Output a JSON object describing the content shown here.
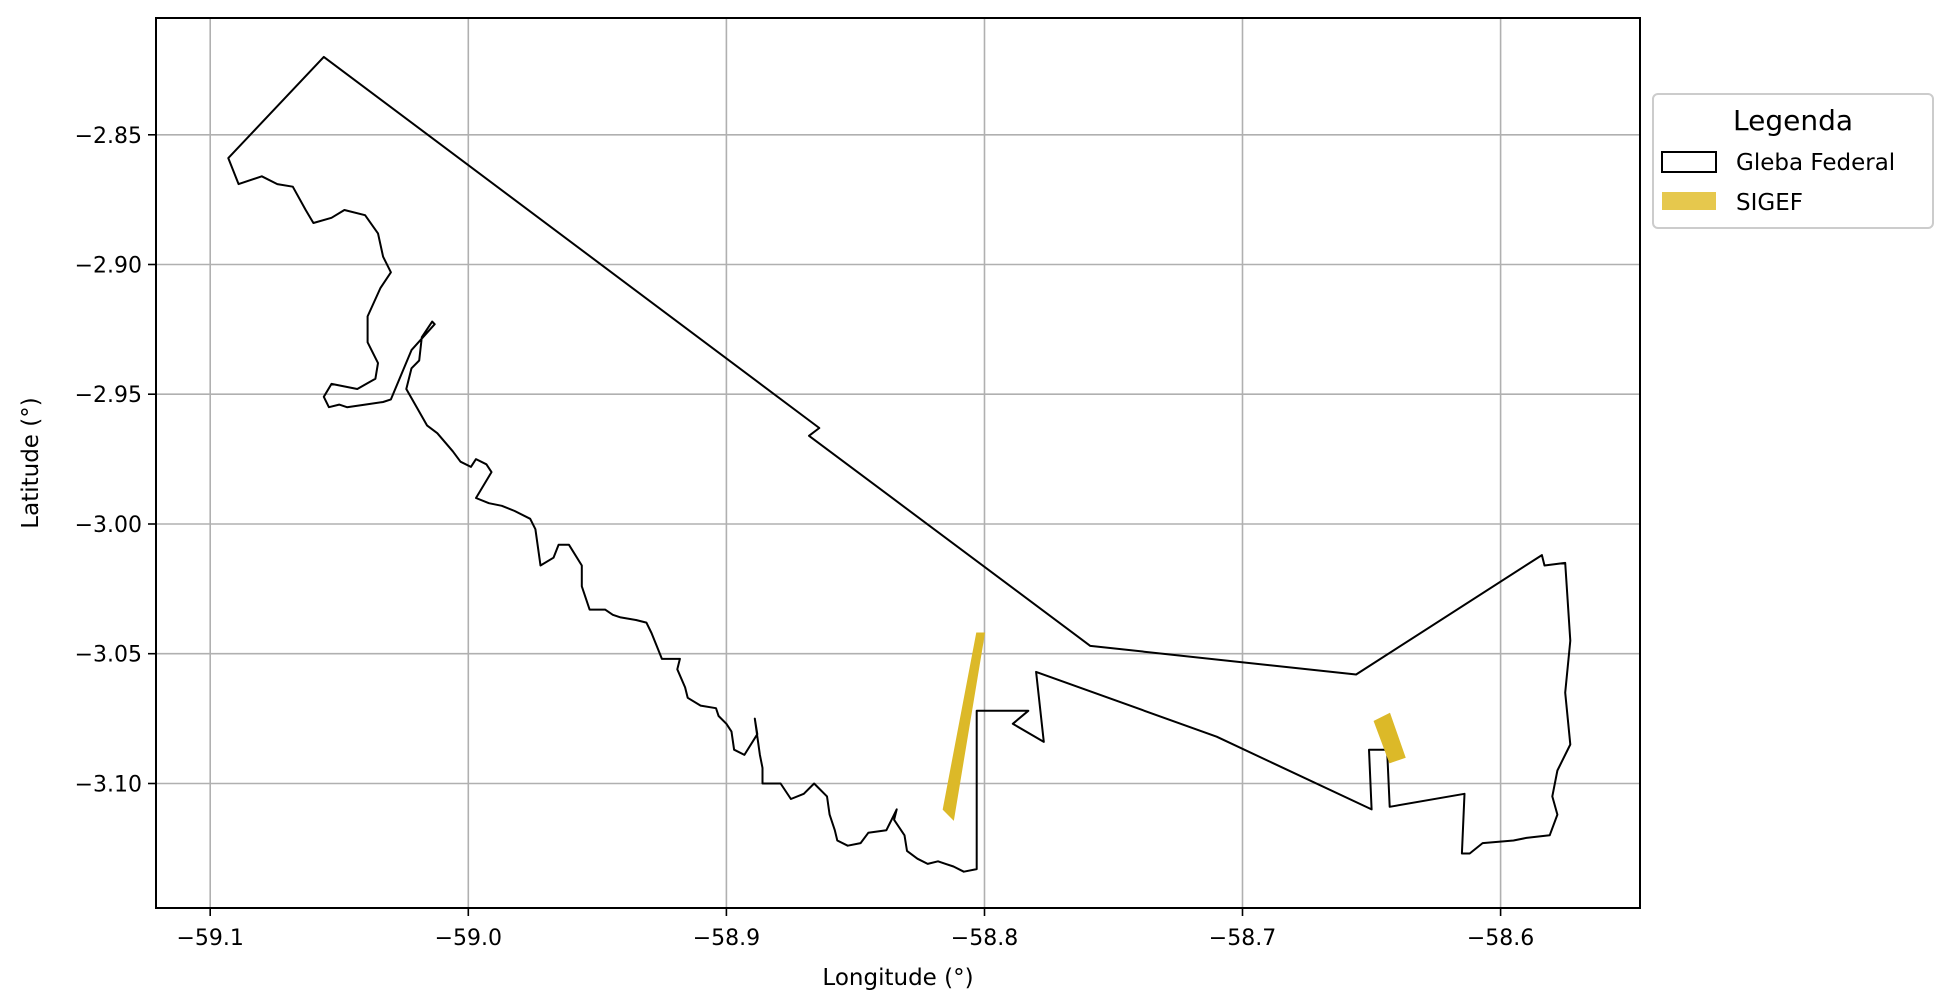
{
  "chart_data": {
    "type": "map",
    "xlabel": "Longitude (°)",
    "ylabel": "Latitude (°)",
    "xlim": [
      -59.121,
      -58.546
    ],
    "ylim": [
      -3.148,
      -2.805
    ],
    "x_ticks": [
      -59.1,
      -59.0,
      -58.9,
      -58.8,
      -58.7,
      -58.6
    ],
    "x_tick_labels": [
      "−59.1",
      "−59.0",
      "−58.9",
      "−58.8",
      "−58.7",
      "−58.6"
    ],
    "y_ticks": [
      -2.85,
      -2.9,
      -2.95,
      -3.0,
      -3.05,
      -3.1
    ],
    "y_tick_labels": [
      "−2.85",
      "−2.90",
      "−2.95",
      "−3.00",
      "−3.05",
      "−3.10"
    ],
    "grid": true,
    "legend": {
      "title": "Legenda",
      "placement": "outside-right-top",
      "entries": [
        {
          "label": "Gleba Federal",
          "style": "outline",
          "color": "#000000"
        },
        {
          "label": "SIGEF",
          "style": "fill",
          "color": "#e6c84d"
        }
      ]
    },
    "layers": [
      {
        "name": "Gleba Federal",
        "style": "outline",
        "stroke": "#000000",
        "fill": "none",
        "coordinates": [
          [
            -59.056,
            -2.82
          ],
          [
            -58.864,
            -2.963
          ],
          [
            -58.868,
            -2.966
          ],
          [
            -58.759,
            -3.047
          ],
          [
            -58.656,
            -3.058
          ],
          [
            -58.584,
            -3.012
          ],
          [
            -58.583,
            -3.016
          ],
          [
            -58.575,
            -3.015
          ],
          [
            -58.573,
            -3.045
          ],
          [
            -58.575,
            -3.065
          ],
          [
            -58.573,
            -3.085
          ],
          [
            -58.578,
            -3.095
          ],
          [
            -58.58,
            -3.105
          ],
          [
            -58.578,
            -3.112
          ],
          [
            -58.581,
            -3.12
          ],
          [
            -58.59,
            -3.121
          ],
          [
            -58.595,
            -3.122
          ],
          [
            -58.607,
            -3.123
          ],
          [
            -58.612,
            -3.127
          ],
          [
            -58.615,
            -3.127
          ],
          [
            -58.614,
            -3.104
          ],
          [
            -58.643,
            -3.109
          ],
          [
            -58.644,
            -3.087
          ],
          [
            -58.651,
            -3.087
          ],
          [
            -58.65,
            -3.11
          ],
          [
            -58.71,
            -3.082
          ],
          [
            -58.78,
            -3.057
          ],
          [
            -58.777,
            -3.084
          ],
          [
            -58.789,
            -3.077
          ],
          [
            -58.783,
            -3.072
          ],
          [
            -58.803,
            -3.072
          ],
          [
            -58.803,
            -3.133
          ],
          [
            -58.808,
            -3.134
          ],
          [
            -58.812,
            -3.132
          ],
          [
            -58.815,
            -3.131
          ],
          [
            -58.818,
            -3.13
          ],
          [
            -58.822,
            -3.131
          ],
          [
            -58.826,
            -3.129
          ],
          [
            -58.83,
            -3.126
          ],
          [
            -58.831,
            -3.12
          ],
          [
            -58.835,
            -3.114
          ],
          [
            -58.834,
            -3.11
          ],
          [
            -58.838,
            -3.118
          ],
          [
            -58.845,
            -3.119
          ],
          [
            -58.848,
            -3.123
          ],
          [
            -58.853,
            -3.124
          ],
          [
            -58.857,
            -3.122
          ],
          [
            -58.858,
            -3.118
          ],
          [
            -58.86,
            -3.112
          ],
          [
            -58.861,
            -3.105
          ],
          [
            -58.866,
            -3.1
          ],
          [
            -58.87,
            -3.104
          ],
          [
            -58.875,
            -3.106
          ],
          [
            -58.879,
            -3.1
          ],
          [
            -58.883,
            -3.1
          ],
          [
            -58.886,
            -3.1
          ],
          [
            -58.886,
            -3.094
          ],
          [
            -58.887,
            -3.089
          ],
          [
            -58.889,
            -3.075
          ],
          [
            -58.888,
            -3.081
          ],
          [
            -58.893,
            -3.089
          ],
          [
            -58.897,
            -3.087
          ],
          [
            -58.898,
            -3.08
          ],
          [
            -58.9,
            -3.077
          ],
          [
            -58.903,
            -3.074
          ],
          [
            -58.904,
            -3.071
          ],
          [
            -58.91,
            -3.07
          ],
          [
            -58.915,
            -3.067
          ],
          [
            -58.916,
            -3.063
          ],
          [
            -58.919,
            -3.056
          ],
          [
            -58.918,
            -3.052
          ],
          [
            -58.925,
            -3.052
          ],
          [
            -58.927,
            -3.047
          ],
          [
            -58.929,
            -3.042
          ],
          [
            -58.931,
            -3.038
          ],
          [
            -58.935,
            -3.037
          ],
          [
            -58.941,
            -3.036
          ],
          [
            -58.944,
            -3.035
          ],
          [
            -58.947,
            -3.033
          ],
          [
            -58.953,
            -3.033
          ],
          [
            -58.956,
            -3.024
          ],
          [
            -58.956,
            -3.016
          ],
          [
            -58.961,
            -3.008
          ],
          [
            -58.965,
            -3.008
          ],
          [
            -58.967,
            -3.013
          ],
          [
            -58.972,
            -3.016
          ],
          [
            -58.974,
            -3.002
          ],
          [
            -58.976,
            -2.998
          ],
          [
            -58.982,
            -2.995
          ],
          [
            -58.987,
            -2.993
          ],
          [
            -58.992,
            -2.992
          ],
          [
            -58.997,
            -2.99
          ],
          [
            -58.991,
            -2.98
          ],
          [
            -58.993,
            -2.977
          ],
          [
            -58.997,
            -2.975
          ],
          [
            -58.999,
            -2.978
          ],
          [
            -59.003,
            -2.976
          ],
          [
            -59.006,
            -2.972
          ],
          [
            -59.012,
            -2.965
          ],
          [
            -59.016,
            -2.962
          ],
          [
            -59.02,
            -2.955
          ],
          [
            -59.024,
            -2.948
          ],
          [
            -59.022,
            -2.94
          ],
          [
            -59.019,
            -2.937
          ],
          [
            -59.018,
            -2.928
          ],
          [
            -59.014,
            -2.922
          ],
          [
            -59.013,
            -2.923
          ],
          [
            -59.022,
            -2.933
          ],
          [
            -59.03,
            -2.952
          ],
          [
            -59.033,
            -2.953
          ],
          [
            -59.04,
            -2.954
          ],
          [
            -59.047,
            -2.955
          ],
          [
            -59.05,
            -2.954
          ],
          [
            -59.054,
            -2.955
          ],
          [
            -59.056,
            -2.951
          ],
          [
            -59.053,
            -2.946
          ],
          [
            -59.043,
            -2.948
          ],
          [
            -59.036,
            -2.944
          ],
          [
            -59.035,
            -2.938
          ],
          [
            -59.039,
            -2.93
          ],
          [
            -59.039,
            -2.92
          ],
          [
            -59.034,
            -2.909
          ],
          [
            -59.03,
            -2.903
          ],
          [
            -59.033,
            -2.897
          ],
          [
            -59.035,
            -2.888
          ],
          [
            -59.04,
            -2.881
          ],
          [
            -59.048,
            -2.879
          ],
          [
            -59.053,
            -2.882
          ],
          [
            -59.06,
            -2.884
          ],
          [
            -59.063,
            -2.879
          ],
          [
            -59.068,
            -2.87
          ],
          [
            -59.074,
            -2.869
          ],
          [
            -59.08,
            -2.866
          ],
          [
            -59.089,
            -2.869
          ],
          [
            -59.093,
            -2.859
          ],
          [
            -59.056,
            -2.82
          ]
        ]
      },
      {
        "name": "SIGEF",
        "style": "fill",
        "fill": "#dcb928",
        "polygons": [
          [
            [
              -58.803,
              -3.042
            ],
            [
              -58.8,
              -3.042
            ],
            [
              -58.812,
              -3.114
            ],
            [
              -58.816,
              -3.11
            ]
          ],
          [
            [
              -58.649,
              -3.076
            ],
            [
              -58.643,
              -3.073
            ],
            [
              -58.637,
              -3.09
            ],
            [
              -58.643,
              -3.092
            ]
          ]
        ]
      }
    ]
  }
}
